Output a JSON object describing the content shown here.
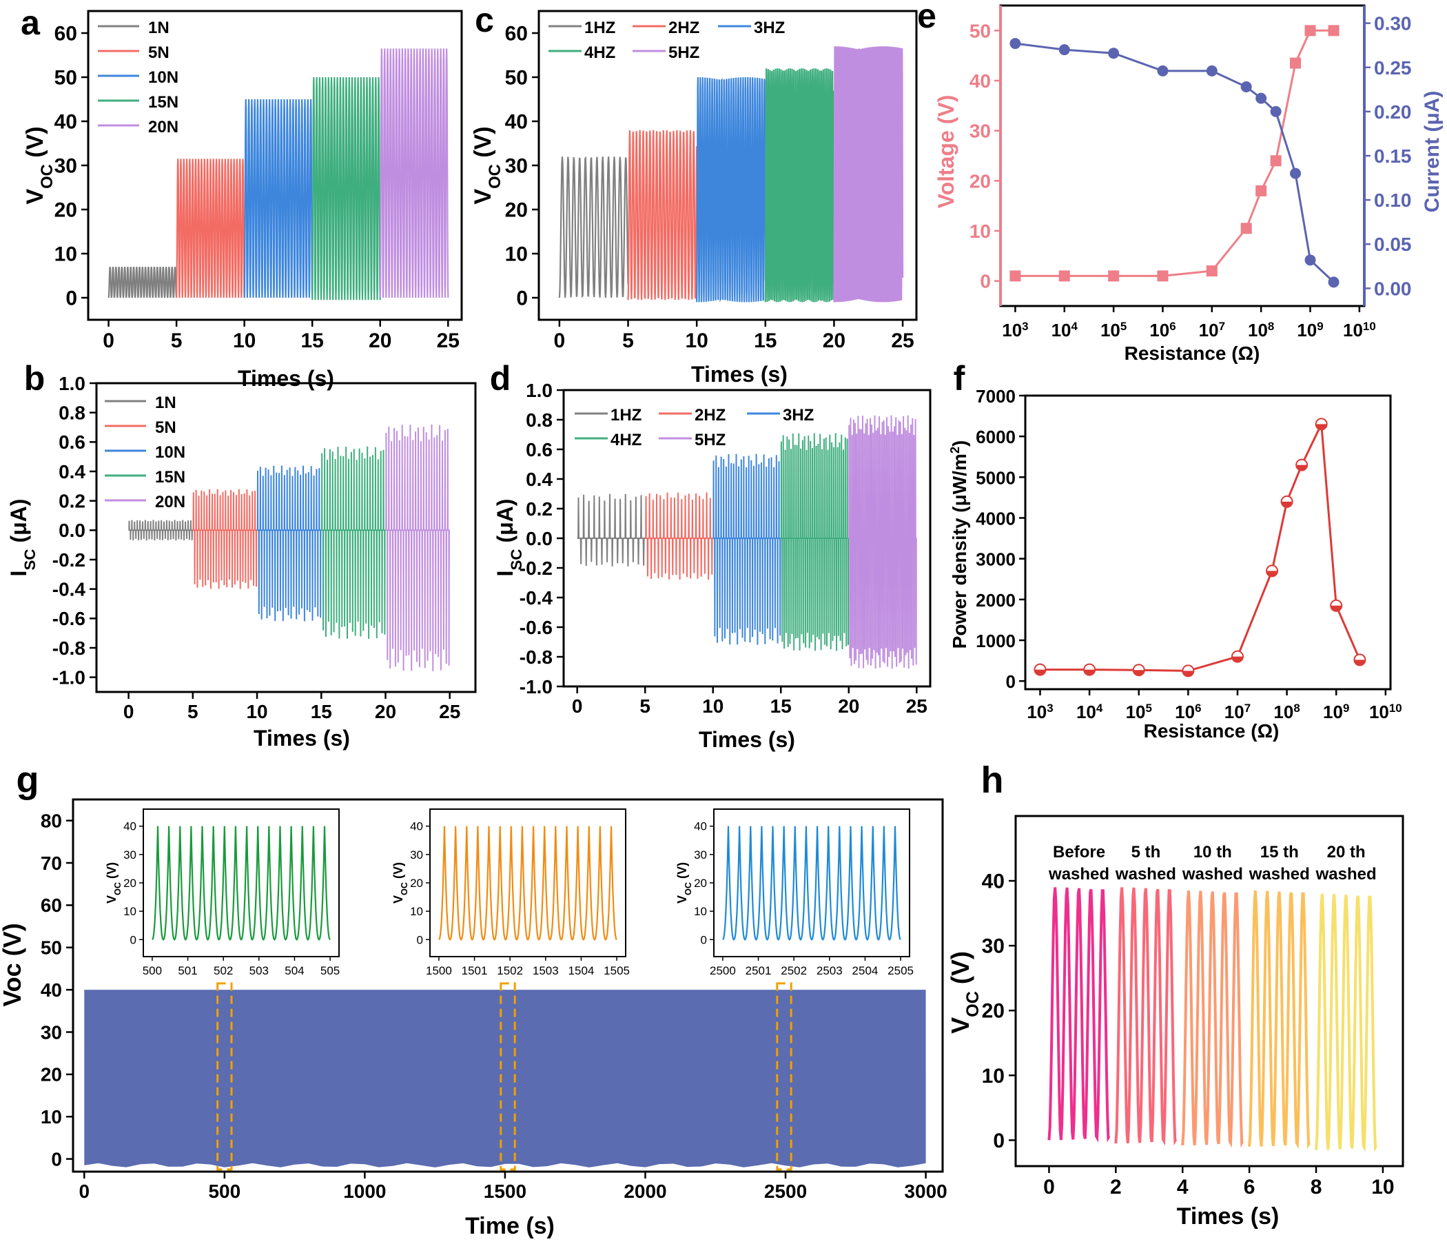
{
  "figure": {
    "colors": {
      "gray": "#808080",
      "red": "#f26c64",
      "blue": "#3d86dc",
      "green": "#3fae7e",
      "purple": "#c08ee0",
      "voltage": "#ee7e88",
      "current": "#5b64b0",
      "power": "#dc3a36",
      "long_fill": "#5b6cb0",
      "box": "#f2a000",
      "inset_green": "#1a9a3c",
      "inset_orange": "#f08c14",
      "inset_blue": "#1f8ad6",
      "wash": [
        "#ee2f8e",
        "#f86878",
        "#fb9a70",
        "#fbbf5a",
        "#f6e06c"
      ]
    }
  },
  "chart_data": [
    {
      "id": "a",
      "panel_label": "a",
      "type": "line",
      "xlabel": "Times (s)",
      "ylabel": "V",
      "ylabel_sub": "OC",
      "yunit": "(V)",
      "xlim": [
        -1.5,
        26
      ],
      "ylim": [
        -5,
        65
      ],
      "xticks": [
        "0",
        "5",
        "10",
        "15",
        "20",
        "25"
      ],
      "xtick_vals": [
        0,
        5,
        10,
        15,
        20,
        25
      ],
      "yticks": [
        "0",
        "10",
        "20",
        "30",
        "40",
        "50",
        "60"
      ],
      "ytick_vals": [
        0,
        10,
        20,
        30,
        40,
        50,
        60
      ],
      "segments": [
        {
          "name": "1N",
          "x0": 0,
          "x1": 5,
          "max": 7,
          "min": 0,
          "freq": 4
        },
        {
          "name": "5N",
          "x0": 5,
          "x1": 10,
          "max": 31.5,
          "min": 0,
          "freq": 4
        },
        {
          "name": "10N",
          "x0": 10,
          "x1": 15,
          "max": 45,
          "min": 0,
          "freq": 4
        },
        {
          "name": "15N",
          "x0": 15,
          "x1": 20,
          "max": 50,
          "min": -0.5,
          "freq": 4
        },
        {
          "name": "20N",
          "x0": 20,
          "x1": 25,
          "max": 56.5,
          "min": 0,
          "freq": 4
        }
      ]
    },
    {
      "id": "b",
      "panel_label": "b",
      "type": "line",
      "xlabel": "Times (s)",
      "ylabel": "I",
      "ylabel_sub": "SC",
      "yunit": "(μA)",
      "xlim": [
        -2.5,
        27
      ],
      "ylim": [
        -1.1,
        1.0
      ],
      "xticks": [
        "0",
        "5",
        "10",
        "15",
        "20",
        "25"
      ],
      "xtick_vals": [
        0,
        5,
        10,
        15,
        20,
        25
      ],
      "yticks": [
        "1.0",
        "0.8",
        "0.6",
        "0.4",
        "0.2",
        "0.0",
        "-0.2",
        "-0.4",
        "-0.6",
        "-0.8",
        "-1.0"
      ],
      "ytick_vals": [
        1.0,
        0.8,
        0.6,
        0.4,
        0.2,
        0.0,
        -0.2,
        -0.4,
        -0.6,
        -0.8,
        -1.0
      ],
      "segments": [
        {
          "name": "1N",
          "x0": 0,
          "x1": 5,
          "max": 0.07,
          "min": -0.07,
          "freq": 4
        },
        {
          "name": "5N",
          "x0": 5,
          "x1": 10,
          "max": 0.28,
          "min": -0.4,
          "freq": 4
        },
        {
          "name": "10N",
          "x0": 10,
          "x1": 15,
          "max": 0.44,
          "min": -0.62,
          "freq": 4
        },
        {
          "name": "15N",
          "x0": 15,
          "x1": 20,
          "max": 0.57,
          "min": -0.74,
          "freq": 4
        },
        {
          "name": "20N",
          "x0": 20,
          "x1": 25,
          "max": 0.72,
          "min": -0.96,
          "freq": 4
        }
      ]
    },
    {
      "id": "c",
      "panel_label": "c",
      "type": "line",
      "xlabel": "Times (s)",
      "ylabel": "V",
      "ylabel_sub": "OC",
      "yunit": "(V)",
      "xlim": [
        -1.5,
        26
      ],
      "ylim": [
        -5,
        65
      ],
      "xticks": [
        "0",
        "5",
        "10",
        "15",
        "20",
        "25"
      ],
      "xtick_vals": [
        0,
        5,
        10,
        15,
        20,
        25
      ],
      "yticks": [
        "0",
        "10",
        "20",
        "30",
        "40",
        "50",
        "60"
      ],
      "ytick_vals": [
        0,
        10,
        20,
        30,
        40,
        50,
        60
      ],
      "segments": [
        {
          "name": "1HZ",
          "x0": 0,
          "x1": 5,
          "max": 32,
          "min": 0,
          "freq": 1.4
        },
        {
          "name": "2HZ",
          "x0": 5,
          "x1": 10,
          "max": 38,
          "min": -0.5,
          "freq": 2.4
        },
        {
          "name": "3HZ",
          "x0": 10,
          "x1": 15,
          "max": 50,
          "min": -1,
          "freq": 3.4
        },
        {
          "name": "4HZ",
          "x0": 15,
          "x1": 20,
          "max": 52,
          "min": -1,
          "freq": 4.4
        },
        {
          "name": "5HZ",
          "x0": 20,
          "x1": 25,
          "max": 57,
          "min": -1,
          "freq": 5.4
        }
      ]
    },
    {
      "id": "d",
      "panel_label": "d",
      "type": "line",
      "xlabel": "Times (s)",
      "ylabel": "I",
      "ylabel_sub": "SC",
      "yunit": "(μA)",
      "xlim": [
        -1,
        26
      ],
      "ylim": [
        -1.0,
        1.0
      ],
      "xticks": [
        "0",
        "5",
        "10",
        "15",
        "20",
        "25"
      ],
      "xtick_vals": [
        0,
        5,
        10,
        15,
        20,
        25
      ],
      "yticks": [
        "1.0",
        "0.8",
        "0.6",
        "0.4",
        "0.2",
        "0.0",
        "-0.2",
        "-0.4",
        "-0.6",
        "-0.8",
        "-1.0"
      ],
      "ytick_vals": [
        1.0,
        0.8,
        0.6,
        0.4,
        0.2,
        0.0,
        -0.2,
        -0.4,
        -0.6,
        -0.8,
        -1.0
      ],
      "segments": [
        {
          "name": "1HZ",
          "x0": 0,
          "x1": 5,
          "max": 0.3,
          "min": -0.19,
          "freq": 1.6
        },
        {
          "name": "2HZ",
          "x0": 5,
          "x1": 10,
          "max": 0.31,
          "min": -0.28,
          "freq": 2.4
        },
        {
          "name": "3HZ",
          "x0": 10,
          "x1": 15,
          "max": 0.57,
          "min": -0.72,
          "freq": 3.4
        },
        {
          "name": "4HZ",
          "x0": 15,
          "x1": 20,
          "max": 0.71,
          "min": -0.76,
          "freq": 4.4
        },
        {
          "name": "5HZ",
          "x0": 20,
          "x1": 25,
          "max": 0.83,
          "min": -0.88,
          "freq": 5.6
        }
      ]
    },
    {
      "id": "e",
      "panel_label": "e",
      "type": "line",
      "xlabel": "Resistance (Ω)",
      "ylabel_left": "Voltage (V)",
      "ylabel_right": "Current (μA)",
      "x_exponents": [
        3,
        4,
        5,
        6,
        7,
        8,
        9,
        10
      ],
      "xlim_log": [
        2.7,
        10.1
      ],
      "ylim_left": [
        -5,
        55
      ],
      "ylim_right": [
        -0.02,
        0.32
      ],
      "yticks_left": [
        "0",
        "10",
        "20",
        "30",
        "40",
        "50"
      ],
      "ytick_vals_left": [
        0,
        10,
        20,
        30,
        40,
        50
      ],
      "yticks_right": [
        "0.00",
        "0.05",
        "0.10",
        "0.15",
        "0.20",
        "0.25",
        "0.30"
      ],
      "ytick_vals_right": [
        0.0,
        0.05,
        0.1,
        0.15,
        0.2,
        0.25,
        0.3
      ],
      "resistance": [
        1000.0,
        10000.0,
        100000.0,
        1000000.0,
        10000000.0,
        50000000.0,
        100000000.0,
        200000000.0,
        500000000.0,
        1000000000.0,
        3000000000.0
      ],
      "voltage": [
        1,
        1,
        1,
        1,
        2,
        10.5,
        18,
        24,
        43.5,
        50,
        50
      ],
      "current": [
        0.277,
        0.27,
        0.266,
        0.246,
        0.246,
        0.228,
        0.215,
        0.2,
        0.13,
        0.032,
        0.007
      ]
    },
    {
      "id": "f",
      "panel_label": "f",
      "type": "line",
      "xlabel": "Resistance (Ω)",
      "ylabel": "Power density (μW/m²)",
      "x_exponents": [
        3,
        4,
        5,
        6,
        7,
        8,
        9,
        10
      ],
      "xlim_log": [
        2.7,
        10.1
      ],
      "ylim": [
        -200,
        7000
      ],
      "yticks": [
        "0",
        "1000",
        "2000",
        "3000",
        "4000",
        "5000",
        "6000",
        "7000"
      ],
      "ytick_vals": [
        0,
        1000,
        2000,
        3000,
        4000,
        5000,
        6000,
        7000
      ],
      "resistance": [
        1000.0,
        10000.0,
        100000.0,
        1000000.0,
        10000000.0,
        50000000.0,
        100000000.0,
        200000000.0,
        500000000.0,
        1000000000.0,
        3000000000.0
      ],
      "power": [
        280,
        280,
        270,
        250,
        600,
        2700,
        4400,
        5300,
        6300,
        1850,
        520
      ]
    },
    {
      "id": "g",
      "panel_label": "g",
      "type": "area",
      "xlabel": "Time (s)",
      "ylabel": "Voc (V)",
      "xlim": [
        -40,
        3060
      ],
      "ylim": [
        -3,
        85
      ],
      "xticks": [
        "0",
        "500",
        "1000",
        "1500",
        "2000",
        "2500",
        "3000"
      ],
      "xtick_vals": [
        0,
        500,
        1000,
        1500,
        2000,
        2500,
        3000
      ],
      "yticks": [
        "0",
        "10",
        "20",
        "30",
        "40",
        "50",
        "60",
        "70",
        "80"
      ],
      "ytick_vals": [
        0,
        10,
        20,
        30,
        40,
        50,
        60,
        70,
        80
      ],
      "signal_max": 40,
      "signal_min": -1.5,
      "boxes": [
        500,
        1510,
        2495
      ],
      "insets": [
        {
          "xticks": [
            "500",
            "501",
            "502",
            "503",
            "504",
            "505"
          ],
          "ylabel": "V",
          "ylabel_sub": "OC",
          "yunit": "(V)",
          "yticks": [
            "0",
            "10",
            "20",
            "30",
            "40"
          ],
          "peaks": 16
        },
        {
          "xticks": [
            "1500",
            "1501",
            "1502",
            "1503",
            "1504",
            "1505"
          ],
          "ylabel": "V",
          "ylabel_sub": "OC",
          "yunit": "(V)",
          "yticks": [
            "0",
            "10",
            "20",
            "30",
            "40"
          ],
          "peaks": 16
        },
        {
          "xticks": [
            "2500",
            "2501",
            "2502",
            "2503",
            "2504",
            "2505"
          ],
          "ylabel": "V",
          "ylabel_sub": "OC",
          "yunit": "(V)",
          "yticks": [
            "0",
            "10",
            "20",
            "30",
            "40"
          ],
          "peaks": 16
        }
      ]
    },
    {
      "id": "h",
      "panel_label": "h",
      "type": "line",
      "xlabel": "Times (s)",
      "ylabel": "V",
      "ylabel_sub": "OC",
      "yunit": "(V)",
      "xlim": [
        -1,
        10.6
      ],
      "ylim": [
        -4,
        50
      ],
      "xticks": [
        "0",
        "2",
        "4",
        "6",
        "8",
        "10"
      ],
      "xtick_vals": [
        0,
        2,
        4,
        6,
        8,
        10
      ],
      "yticks": [
        "0",
        "10",
        "20",
        "30",
        "40"
      ],
      "ytick_vals": [
        0,
        10,
        20,
        30,
        40
      ],
      "segments": [
        {
          "name": "Before washed",
          "line1": "Before",
          "line2": "washed",
          "x0": 0,
          "x1": 1.8,
          "max": 39,
          "min": 0
        },
        {
          "name": "5 th washed",
          "line1": "5 th",
          "line2": "washed",
          "x0": 2.0,
          "x1": 3.8,
          "max": 39,
          "min": -0.5
        },
        {
          "name": "10 th washed",
          "line1": "10 th",
          "line2": "washed",
          "x0": 4.0,
          "x1": 5.8,
          "max": 38.5,
          "min": -0.8
        },
        {
          "name": "15 th washed",
          "line1": "15 th",
          "line2": "washed",
          "x0": 6.0,
          "x1": 7.8,
          "max": 38.5,
          "min": -1.0
        },
        {
          "name": "20 th washed",
          "line1": "20 th",
          "line2": "washed",
          "x0": 8.0,
          "x1": 9.8,
          "max": 38,
          "min": -1.5
        }
      ]
    }
  ]
}
